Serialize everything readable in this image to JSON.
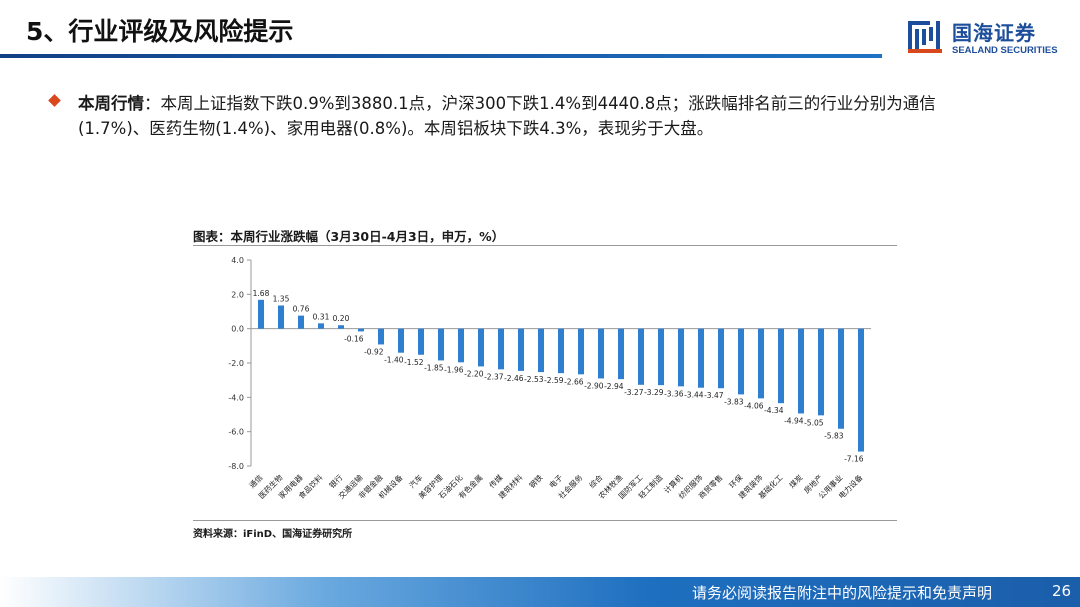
{
  "header": {
    "title": "5、行业评级及风险提示",
    "logo_cn": "国海证券",
    "logo_en": "SEALAND SECURITIES"
  },
  "summary": {
    "label": "本周行情",
    "text_line1": "：本周上证指数下跌0.9%到3880.1点，沪深300下跌1.4%到4440.8点；涨跌幅排名前三的行业分别为通信",
    "text_line2": "(1.7%)、医药生物(1.4%)、家用电器(0.8%)。本周铝板块下跌4.3%，表现劣于大盘。"
  },
  "chart_title": "图表：本周行业涨跌幅（3月30日-4月3日，申万，%）",
  "source": "资料来源：iFinD、国海证券研究所",
  "footer": {
    "disclaimer": "请务必阅读报告附注中的风险提示和免责声明",
    "page_number": "26"
  },
  "colors": {
    "bar": "#2e7fd0",
    "brand": "#1d4e9b",
    "accent": "#d9481c"
  },
  "chart_data": {
    "type": "bar",
    "title": "图表：本周行业涨跌幅（3月30日-4月3日，申万，%）",
    "xlabel": "",
    "ylabel": "",
    "ylim": [
      -8,
      4
    ],
    "yticks": [
      "4.0",
      "2.0",
      "0.0",
      "-2.0",
      "-4.0",
      "-6.0",
      "-8.0"
    ],
    "ytick_values": [
      4,
      2,
      0,
      -2,
      -4,
      -6,
      -8
    ],
    "categories": [
      "通信",
      "医药生物",
      "家用电器",
      "食品饮料",
      "银行",
      "交通运输",
      "非银金融",
      "机械设备",
      "汽车",
      "美容护理",
      "石油石化",
      "有色金属",
      "传媒",
      "建筑材料",
      "钢铁",
      "电子",
      "社会服务",
      "综合",
      "农林牧渔",
      "国防军工",
      "轻工制造",
      "计算机",
      "纺织服饰",
      "商贸零售",
      "环保",
      "建筑装饰",
      "基础化工",
      "煤炭",
      "房地产",
      "公用事业",
      "电力设备"
    ],
    "values": [
      1.68,
      1.35,
      0.76,
      0.31,
      0.2,
      -0.16,
      -0.92,
      -1.4,
      -1.52,
      -1.85,
      -1.96,
      -2.2,
      -2.37,
      -2.46,
      -2.53,
      -2.59,
      -2.66,
      -2.9,
      -2.94,
      -3.27,
      -3.29,
      -3.36,
      -3.44,
      -3.47,
      -3.83,
      -4.06,
      -4.34,
      -4.94,
      -5.05,
      -5.83,
      -7.16
    ],
    "labels": [
      "1.68",
      "1.35",
      "0.76",
      "0.31",
      "0.20",
      "-0.16",
      "-0.92",
      "-1.40",
      "-1.52",
      "-1.85",
      "-1.96",
      "-2.20",
      "-2.37",
      "-2.46",
      "-2.53",
      "-2.59",
      "-2.66",
      "-2.90",
      "-2.94",
      "-3.27",
      "-3.29",
      "-3.36",
      "-3.44",
      "-3.47",
      "-3.83",
      "-4.06",
      "-4.34",
      "-4.94",
      "-5.05",
      "-5.83",
      "-7.16"
    ]
  }
}
